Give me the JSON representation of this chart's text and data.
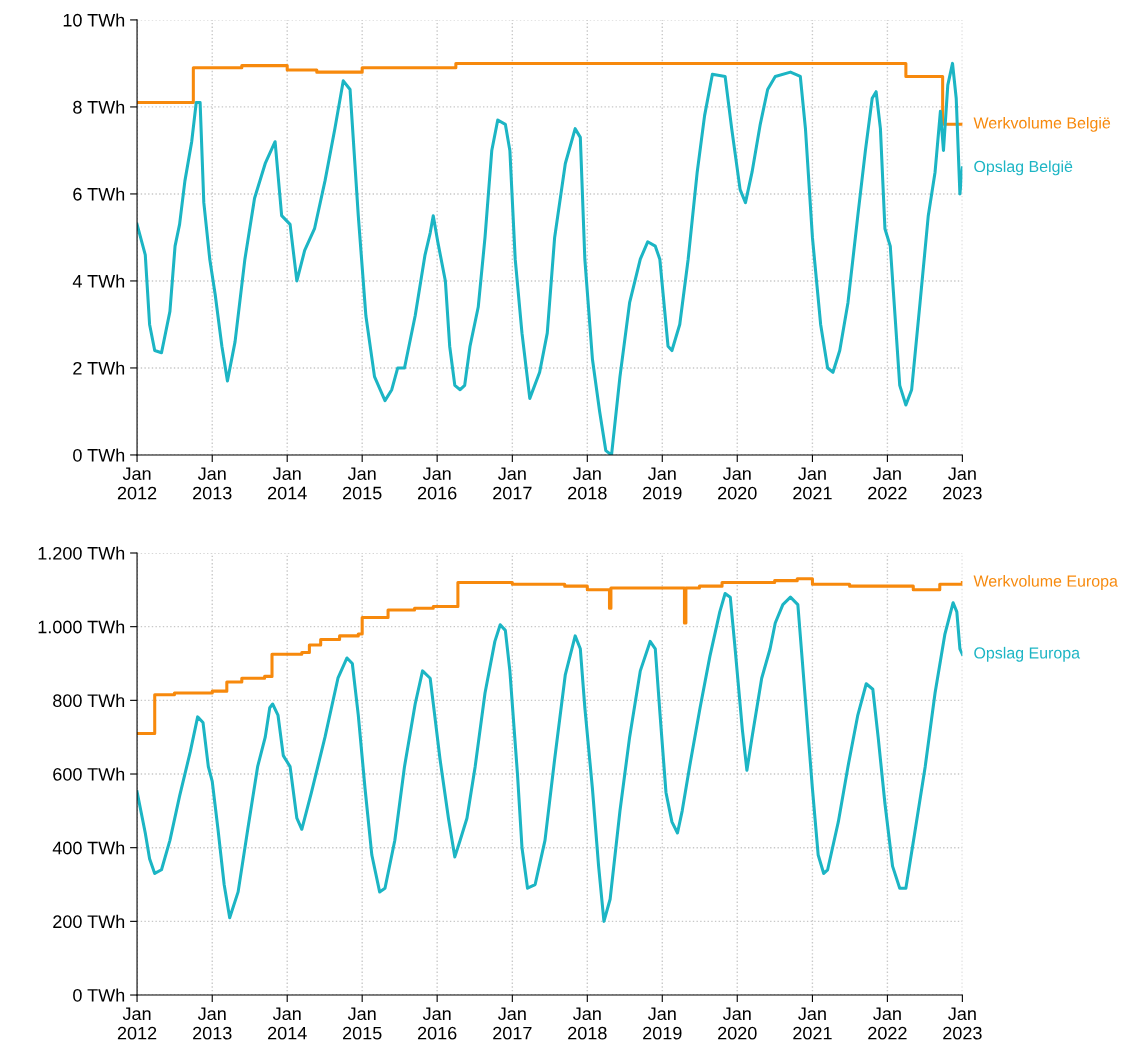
{
  "chart_data": [
    {
      "type": "line",
      "xlim": [
        "2012-01-01",
        "2023-01-01"
      ],
      "xticks": [
        {
          "value": "2012-01-01",
          "label": "Jan\n2012"
        },
        {
          "value": "2013-01-01",
          "label": "Jan\n2013"
        },
        {
          "value": "2014-01-01",
          "label": "Jan\n2014"
        },
        {
          "value": "2015-01-01",
          "label": "Jan\n2015"
        },
        {
          "value": "2016-01-01",
          "label": "Jan\n2016"
        },
        {
          "value": "2017-01-01",
          "label": "Jan\n2017"
        },
        {
          "value": "2018-01-01",
          "label": "Jan\n2018"
        },
        {
          "value": "2019-01-01",
          "label": "Jan\n2019"
        },
        {
          "value": "2020-01-01",
          "label": "Jan\n2020"
        },
        {
          "value": "2021-01-01",
          "label": "Jan\n2021"
        },
        {
          "value": "2022-01-01",
          "label": "Jan\n2022"
        },
        {
          "value": "2023-01-01",
          "label": "Jan\n2023"
        }
      ],
      "ylim": [
        0,
        10
      ],
      "yticks": [
        {
          "value": 0,
          "label": "0 TWh"
        },
        {
          "value": 2,
          "label": "2 TWh"
        },
        {
          "value": 4,
          "label": "4 TWh"
        },
        {
          "value": 6,
          "label": "6 TWh"
        },
        {
          "value": 8,
          "label": "8 TWh"
        },
        {
          "value": 10,
          "label": "10 TWh"
        }
      ],
      "grid": true,
      "series": [
        {
          "name": "Werkvolume België",
          "type": "step",
          "color": "#f7890c",
          "x": [
            "2012-01-01",
            "2012-10-01",
            "2013-05-25",
            "2014-01-01",
            "2014-05-25",
            "2015-01-01",
            "2015-07-01",
            "2016-04-01",
            "2022-04-01",
            "2022-09-27",
            "2023-01-01"
          ],
          "values": [
            8.1,
            8.9,
            8.95,
            8.85,
            8.8,
            8.9,
            8.9,
            9.0,
            8.7,
            7.6,
            7.6
          ]
        },
        {
          "name": "Opslag België",
          "color": "#1cb5c4",
          "x": [
            "2012-01-01",
            "2012-02-10",
            "2012-03-02",
            "2012-03-27",
            "2012-04-29",
            "2012-06-09",
            "2012-07-04",
            "2012-07-26",
            "2012-08-21",
            "2012-09-23",
            "2012-10-15",
            "2012-11-03",
            "2012-11-21",
            "2012-12-20",
            "2013-01-15",
            "2013-02-17",
            "2013-03-16",
            "2013-04-22",
            "2013-06-09",
            "2013-07-26",
            "2013-09-16",
            "2013-11-03",
            "2013-12-05",
            "2014-01-15",
            "2014-02-17",
            "2014-03-27",
            "2014-05-14",
            "2014-07-04",
            "2014-08-21",
            "2014-10-01",
            "2014-11-03",
            "2014-12-13",
            "2015-01-19",
            "2015-03-02",
            "2015-04-22",
            "2015-05-25",
            "2015-06-23",
            "2015-07-26",
            "2015-09-16",
            "2015-11-03",
            "2015-11-28",
            "2015-12-13",
            "2016-01-04",
            "2016-02-10",
            "2016-03-02",
            "2016-03-27",
            "2016-04-22",
            "2016-05-14",
            "2016-06-09",
            "2016-07-19",
            "2016-08-21",
            "2016-09-23",
            "2016-10-22",
            "2016-11-28",
            "2016-12-20",
            "2017-01-15",
            "2017-02-17",
            "2017-03-27",
            "2017-05-14",
            "2017-06-20",
            "2017-07-26",
            "2017-09-16",
            "2017-11-03",
            "2017-11-28",
            "2017-12-20",
            "2018-01-26",
            "2018-03-02",
            "2018-04-01",
            "2018-04-29",
            "2018-06-09",
            "2018-07-26",
            "2018-09-16",
            "2018-10-22",
            "2018-11-28",
            "2018-12-20",
            "2019-01-29",
            "2019-02-17",
            "2019-03-27",
            "2019-05-07",
            "2019-06-20",
            "2019-07-26",
            "2019-09-02",
            "2019-11-03",
            "2019-12-05",
            "2020-01-15",
            "2020-02-10",
            "2020-03-13",
            "2020-04-22",
            "2020-05-28",
            "2020-07-04",
            "2020-09-16",
            "2020-11-03",
            "2020-11-28",
            "2021-01-01",
            "2021-02-10",
            "2021-03-16",
            "2021-04-11",
            "2021-05-14",
            "2021-06-23",
            "2021-08-10",
            "2021-09-16",
            "2021-10-19",
            "2021-11-07",
            "2021-11-28",
            "2021-12-20",
            "2022-01-15",
            "2022-02-10",
            "2022-03-02",
            "2022-04-01",
            "2022-04-29",
            "2022-06-09",
            "2022-07-19",
            "2022-08-21",
            "2022-09-16",
            "2022-10-01",
            "2022-10-22",
            "2022-11-14",
            "2022-12-02",
            "2022-12-20",
            "2023-01-01"
          ],
          "values": [
            5.3,
            4.6,
            3.0,
            2.4,
            2.35,
            3.3,
            4.8,
            5.3,
            6.3,
            7.2,
            8.1,
            8.1,
            5.8,
            4.5,
            3.7,
            2.5,
            1.7,
            2.6,
            4.5,
            5.9,
            6.7,
            7.2,
            5.5,
            5.3,
            4.0,
            4.7,
            5.2,
            6.3,
            7.5,
            8.6,
            8.4,
            5.5,
            3.2,
            1.8,
            1.25,
            1.5,
            2.0,
            2.0,
            3.2,
            4.6,
            5.1,
            5.5,
            4.9,
            4.0,
            2.5,
            1.6,
            1.5,
            1.6,
            2.5,
            3.4,
            5.0,
            7.0,
            7.7,
            7.6,
            7.0,
            4.5,
            2.8,
            1.3,
            1.9,
            2.8,
            5.0,
            6.7,
            7.5,
            7.3,
            4.5,
            2.2,
            1.0,
            0.1,
            0.0,
            1.8,
            3.5,
            4.5,
            4.9,
            4.8,
            4.5,
            2.5,
            2.4,
            3.0,
            4.5,
            6.5,
            7.8,
            8.75,
            8.7,
            7.5,
            6.1,
            5.8,
            6.5,
            7.6,
            8.4,
            8.7,
            8.8,
            8.7,
            7.5,
            5.0,
            3.0,
            2.0,
            1.9,
            2.4,
            3.5,
            5.5,
            7.0,
            8.2,
            8.35,
            7.5,
            5.2,
            4.8,
            3.0,
            1.6,
            1.15,
            1.5,
            3.5,
            5.5,
            6.5,
            7.9,
            7.0,
            8.5,
            9.0,
            8.2,
            6.0,
            6.6
          ]
        }
      ]
    },
    {
      "type": "line",
      "xlim": [
        "2012-01-01",
        "2023-01-01"
      ],
      "xticks": [
        {
          "value": "2012-01-01",
          "label": "Jan\n2012"
        },
        {
          "value": "2013-01-01",
          "label": "Jan\n2013"
        },
        {
          "value": "2014-01-01",
          "label": "Jan\n2014"
        },
        {
          "value": "2015-01-01",
          "label": "Jan\n2015"
        },
        {
          "value": "2016-01-01",
          "label": "Jan\n2016"
        },
        {
          "value": "2017-01-01",
          "label": "Jan\n2017"
        },
        {
          "value": "2018-01-01",
          "label": "Jan\n2018"
        },
        {
          "value": "2019-01-01",
          "label": "Jan\n2019"
        },
        {
          "value": "2020-01-01",
          "label": "Jan\n2020"
        },
        {
          "value": "2021-01-01",
          "label": "Jan\n2021"
        },
        {
          "value": "2022-01-01",
          "label": "Jan\n2022"
        },
        {
          "value": "2023-01-01",
          "label": "Jan\n2023"
        }
      ],
      "ylim": [
        0,
        1200
      ],
      "yticks": [
        {
          "value": 0,
          "label": "0 TWh"
        },
        {
          "value": 200,
          "label": "200 TWh"
        },
        {
          "value": 400,
          "label": "400 TWh"
        },
        {
          "value": 600,
          "label": "600 TWh"
        },
        {
          "value": 800,
          "label": "800 TWh"
        },
        {
          "value": 1000,
          "label": "1.000 TWh"
        },
        {
          "value": 1200,
          "label": "1.200 TWh"
        }
      ],
      "grid": true,
      "series": [
        {
          "name": "Werkvolume Europa",
          "type": "step",
          "color": "#f7890c",
          "x": [
            "2012-01-01",
            "2012-03-27",
            "2012-07-01",
            "2013-01-01",
            "2013-03-13",
            "2013-05-25",
            "2013-09-13",
            "2013-10-19",
            "2014-03-13",
            "2014-04-19",
            "2014-06-13",
            "2014-09-13",
            "2014-12-13",
            "2015-01-01",
            "2015-05-07",
            "2015-09-13",
            "2015-12-13",
            "2016-04-11",
            "2017-01-01",
            "2017-09-13",
            "2018-01-01",
            "2018-04-19",
            "2018-04-26",
            "2018-07-01",
            "2019-01-01",
            "2019-04-19",
            "2019-04-26",
            "2019-07-01",
            "2019-10-19",
            "2020-07-01",
            "2020-10-19",
            "2021-01-01",
            "2021-07-01",
            "2022-01-01",
            "2022-05-07",
            "2022-09-13",
            "2023-01-01"
          ],
          "values": [
            710,
            815,
            820,
            825,
            850,
            860,
            865,
            925,
            930,
            950,
            965,
            975,
            980,
            1025,
            1045,
            1050,
            1055,
            1120,
            1115,
            1110,
            1100,
            1050,
            1105,
            1105,
            1105,
            1010,
            1105,
            1110,
            1120,
            1125,
            1130,
            1115,
            1110,
            1110,
            1100,
            1115,
            1120
          ]
        },
        {
          "name": "Opslag Europa",
          "color": "#1cb5c4",
          "x": [
            "2012-01-01",
            "2012-02-10",
            "2012-03-02",
            "2012-03-27",
            "2012-04-29",
            "2012-06-09",
            "2012-07-26",
            "2012-09-16",
            "2012-10-22",
            "2012-11-17",
            "2012-12-13",
            "2013-01-01",
            "2013-01-29",
            "2013-02-28",
            "2013-03-27",
            "2013-05-07",
            "2013-06-23",
            "2013-08-10",
            "2013-09-16",
            "2013-10-08",
            "2013-10-22",
            "2013-11-17",
            "2013-12-13",
            "2014-01-15",
            "2014-02-17",
            "2014-03-13",
            "2014-04-29",
            "2014-07-04",
            "2014-09-05",
            "2014-10-19",
            "2014-11-14",
            "2014-12-13",
            "2015-01-15",
            "2015-02-17",
            "2015-03-27",
            "2015-04-22",
            "2015-06-09",
            "2015-07-26",
            "2015-09-16",
            "2015-10-22",
            "2015-11-28",
            "2015-12-20",
            "2016-01-15",
            "2016-02-25",
            "2016-03-27",
            "2016-04-22",
            "2016-05-25",
            "2016-07-04",
            "2016-08-21",
            "2016-10-08",
            "2016-11-03",
            "2016-11-28",
            "2016-12-20",
            "2017-01-26",
            "2017-02-17",
            "2017-03-16",
            "2017-04-22",
            "2017-06-09",
            "2017-07-26",
            "2017-09-16",
            "2017-11-03",
            "2017-11-28",
            "2017-12-20",
            "2018-01-26",
            "2018-02-25",
            "2018-03-23",
            "2018-04-22",
            "2018-06-09",
            "2018-07-26",
            "2018-09-16",
            "2018-11-03",
            "2018-11-28",
            "2018-12-20",
            "2019-01-19",
            "2019-02-17",
            "2019-03-16",
            "2019-04-08",
            "2019-05-14",
            "2019-07-04",
            "2019-08-21",
            "2019-10-08",
            "2019-11-03",
            "2019-11-28",
            "2019-12-20",
            "2020-01-26",
            "2020-02-17",
            "2020-03-13",
            "2020-04-29",
            "2020-06-09",
            "2020-07-04",
            "2020-08-10",
            "2020-09-16",
            "2020-10-22",
            "2020-11-28",
            "2021-01-01",
            "2021-01-29",
            "2021-02-25",
            "2021-03-16",
            "2021-05-07",
            "2021-06-23",
            "2021-08-10",
            "2021-09-20",
            "2021-10-22",
            "2021-11-17",
            "2021-12-20",
            "2022-01-26",
            "2022-03-02",
            "2022-04-01",
            "2022-05-14",
            "2022-07-04",
            "2022-08-21",
            "2022-10-08",
            "2022-11-17",
            "2022-12-05",
            "2022-12-20",
            "2023-01-01"
          ],
          "values": [
            552,
            440,
            370,
            330,
            340,
            420,
            540,
            660,
            755,
            740,
            620,
            580,
            450,
            300,
            210,
            280,
            450,
            620,
            700,
            780,
            790,
            760,
            650,
            620,
            480,
            450,
            550,
            700,
            860,
            915,
            900,
            760,
            560,
            380,
            280,
            290,
            420,
            620,
            790,
            880,
            860,
            760,
            640,
            480,
            375,
            420,
            480,
            620,
            820,
            960,
            1005,
            990,
            880,
            600,
            400,
            290,
            300,
            420,
            640,
            870,
            975,
            940,
            780,
            560,
            350,
            200,
            260,
            500,
            700,
            880,
            960,
            940,
            770,
            550,
            470,
            440,
            500,
            620,
            780,
            920,
            1040,
            1090,
            1080,
            950,
            720,
            610,
            700,
            860,
            940,
            1010,
            1060,
            1080,
            1060,
            800,
            560,
            380,
            330,
            340,
            470,
            620,
            760,
            845,
            830,
            700,
            520,
            350,
            290,
            290,
            440,
            620,
            820,
            980,
            1065,
            1040,
            940,
            925
          ]
        }
      ]
    }
  ]
}
